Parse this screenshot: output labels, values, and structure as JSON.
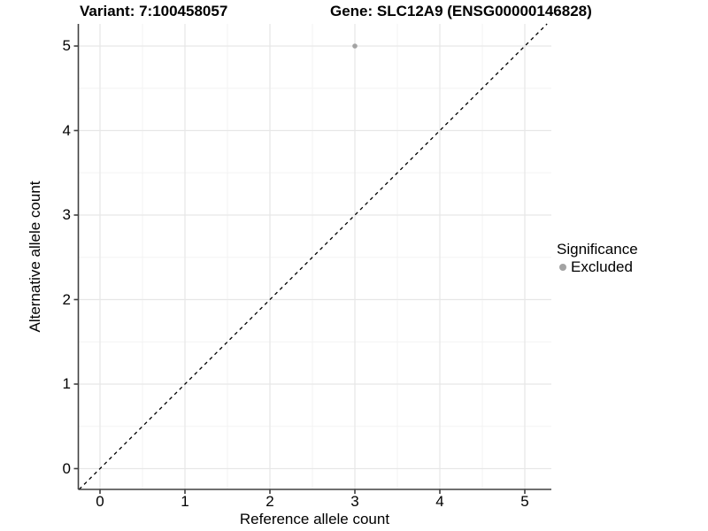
{
  "header": {
    "variant_title": "Variant: 7:100458057",
    "gene_title": "Gene: SLC12A9 (ENSG00000146828)"
  },
  "chart_data": {
    "type": "scatter",
    "title": "Variant: 7:100458057 / Gene: SLC12A9 (ENSG00000146828)",
    "xlabel": "Reference allele count",
    "ylabel": "Alternative allele count",
    "xlim": [
      -0.26,
      5.31
    ],
    "ylim": [
      -0.25,
      5.26
    ],
    "x_ticks": [
      "0",
      "1",
      "2",
      "3",
      "4",
      "5"
    ],
    "y_ticks": [
      "0",
      "1",
      "2",
      "3",
      "4",
      "5"
    ],
    "grid": {
      "major": true,
      "minor": true
    },
    "identity_line": {
      "slope": 1,
      "intercept": 0,
      "style": "dashed",
      "color": "#000000"
    },
    "series": [
      {
        "name": "Excluded",
        "color": "#A3A3A3",
        "points": [
          [
            3,
            5
          ]
        ]
      }
    ],
    "legend": {
      "title": "Significance",
      "position": "right",
      "entries": [
        {
          "label": "Excluded",
          "color": "#A3A3A3",
          "marker": "circle"
        }
      ]
    }
  },
  "colors": {
    "background": "#FFFFFF",
    "grid_major": "#E7E7E7",
    "grid_minor": "#F3F3F3",
    "axis": "#404040",
    "text": "#000000",
    "point": "#A3A3A3"
  }
}
